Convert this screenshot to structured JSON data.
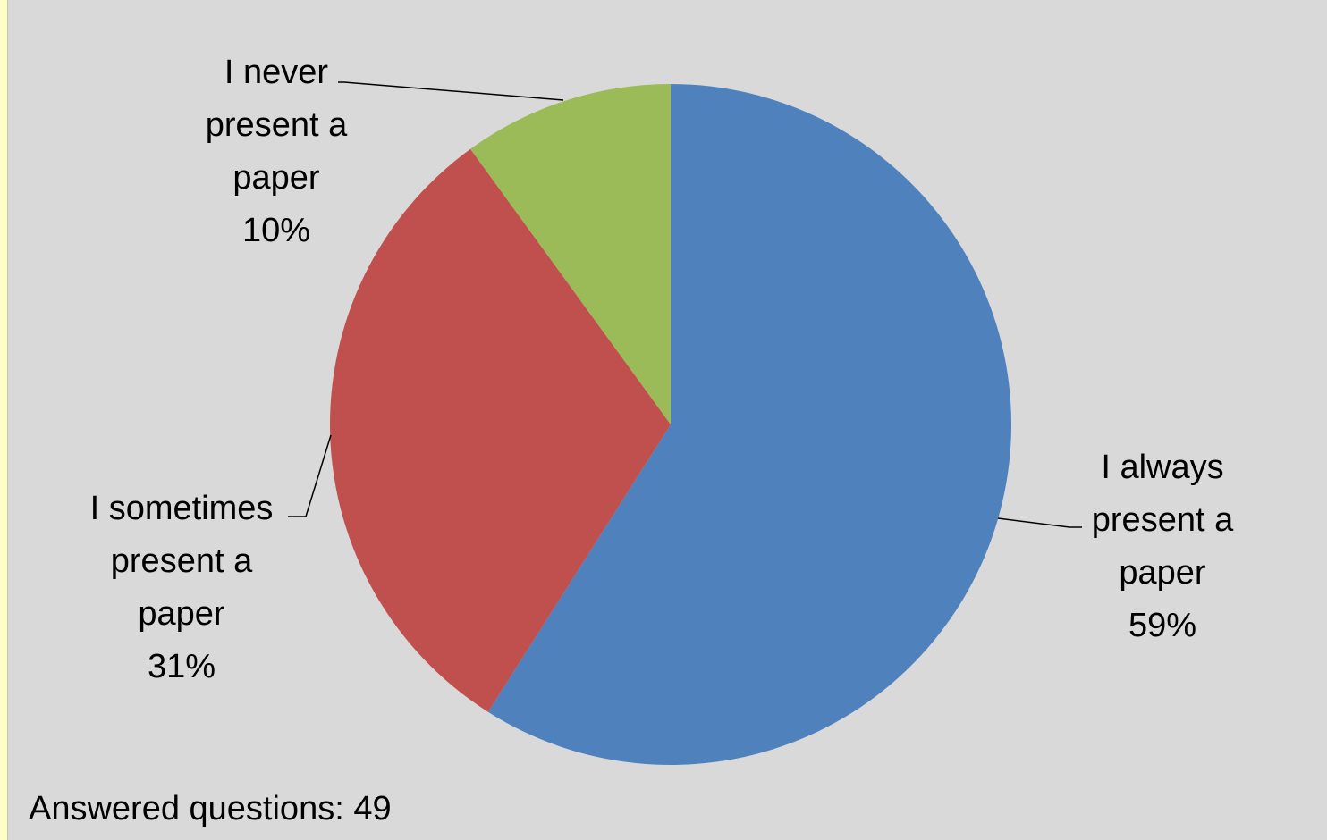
{
  "chart_data": {
    "type": "pie",
    "title": "",
    "start_angle_deg": 0,
    "direction": "clockwise",
    "slices": [
      {
        "label_lines": [
          "I always",
          "present a",
          "paper",
          "59%"
        ],
        "label": "I always present a paper",
        "value": 59,
        "color": "#4f81bd"
      },
      {
        "label_lines": [
          "I sometimes",
          "present a",
          "paper",
          "31%"
        ],
        "label": "I sometimes present a paper",
        "value": 31,
        "color": "#c0504d"
      },
      {
        "label_lines": [
          "I never",
          "present a",
          "paper",
          "10%"
        ],
        "label": "I never present a paper",
        "value": 10,
        "color": "#9bbb59"
      }
    ]
  },
  "note": "Answered questions: 49"
}
